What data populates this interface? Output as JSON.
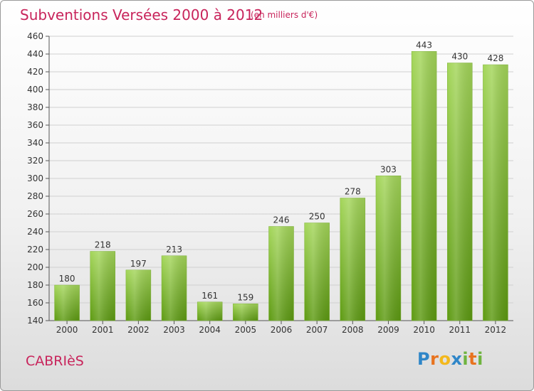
{
  "header": {
    "title": "Subventions Versées 2000 à 2012",
    "subtitle": "(en milliers d'€)"
  },
  "footer": {
    "commune": "CABRIèS",
    "logo": {
      "text": "Proxiti",
      "letters": [
        "P",
        "r",
        "o",
        "x",
        "i",
        "t",
        "i"
      ],
      "letter_colors": [
        "#2f86c8",
        "#e8731f",
        "#f3b81c",
        "#2f86c8",
        "#6fb43f",
        "#e8731f",
        "#6fb43f"
      ]
    }
  },
  "colors": {
    "bar_top": "#a4d65a",
    "bar_bottom": "#5d9a12",
    "text": "#333333",
    "accent": "#c8245b",
    "grid": "#d0d0d0"
  },
  "chart_data": {
    "type": "bar",
    "title": "Subventions Versées 2000 à 2012",
    "subtitle": "(en milliers d'€)",
    "categories": [
      "2000",
      "2001",
      "2002",
      "2003",
      "2004",
      "2005",
      "2006",
      "2007",
      "2008",
      "2009",
      "2010",
      "2011",
      "2012"
    ],
    "values": [
      180,
      218,
      197,
      213,
      161,
      159,
      246,
      250,
      278,
      303,
      443,
      430,
      428
    ],
    "ylim": [
      140,
      460
    ],
    "yticks": [
      140,
      160,
      180,
      200,
      220,
      240,
      260,
      280,
      300,
      320,
      340,
      360,
      380,
      400,
      420,
      440,
      460
    ],
    "grid": true,
    "legend": "none"
  }
}
